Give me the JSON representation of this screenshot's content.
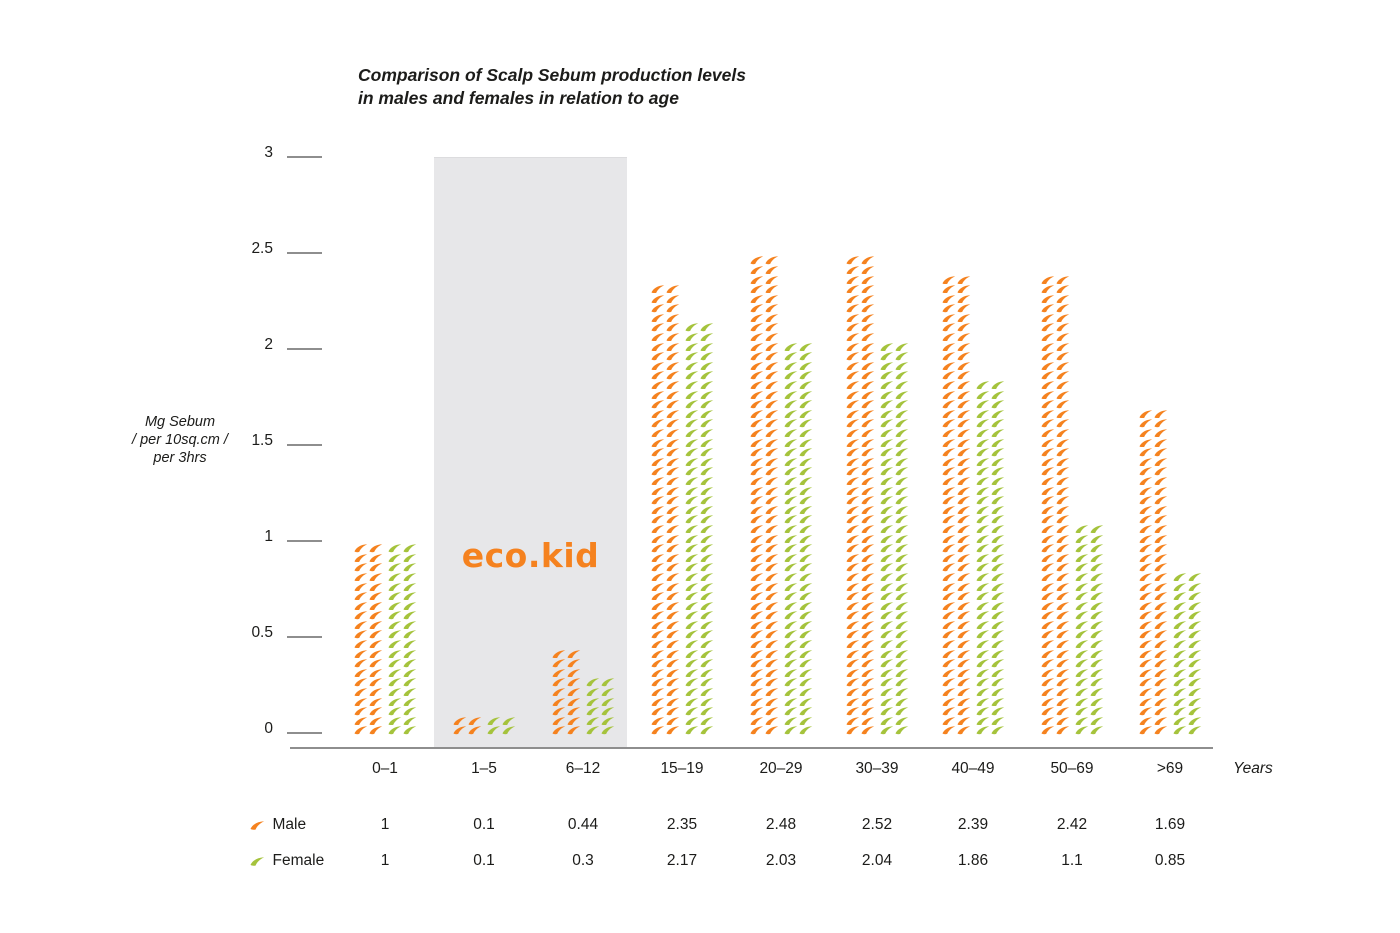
{
  "title": {
    "line1": "Comparison of Scalp Sebum production levels",
    "line2": "in males and females in relation to age"
  },
  "y_axis": {
    "label_lines": [
      "Mg Sebum",
      "/ per 10sq.cm /",
      "per 3hrs"
    ],
    "tick_labels": [
      "3",
      "2.5",
      "2",
      "1.5",
      "1",
      "0.5",
      "0"
    ]
  },
  "x_axis": {
    "categories": [
      "0–1",
      "1–5",
      "6–12",
      "15–19",
      "20–29",
      "30–39",
      "40–49",
      "50–69",
      ">69"
    ],
    "unit_label": "Years"
  },
  "watermark": {
    "text": "eco.kid"
  },
  "legend": {
    "male_label": "Male",
    "female_label": "Female"
  },
  "colors": {
    "male": "#f5821f",
    "female": "#a5c33c",
    "highlight_band": "#e7e7e9",
    "axis": "#8e8e8e",
    "text": "#1c1c1a",
    "logo": "#f5821f"
  },
  "chart_data": {
    "type": "bar",
    "subtype": "pictogram-leaf-stack",
    "title": "Comparison of Scalp Sebum production levels in males and females in relation to age",
    "ylabel": "Mg Sebum / per 10sq.cm / per 3hrs",
    "xlabel": "Years",
    "ylim": [
      0,
      3
    ],
    "yticks": [
      0,
      0.5,
      1,
      1.5,
      2,
      2.5,
      3
    ],
    "grid": false,
    "legend_position": "bottom-left-table",
    "unit_per_leaf_row": 0.05,
    "categories": [
      "0–1",
      "1–5",
      "6–12",
      "15–19",
      "20–29",
      "30–39",
      "40–49",
      "50–69",
      ">69"
    ],
    "highlighted_categories": [
      "1–5",
      "6–12"
    ],
    "series": [
      {
        "name": "Male",
        "color": "#f5821f",
        "values": [
          1,
          0.1,
          0.44,
          2.35,
          2.48,
          2.52,
          2.39,
          2.42,
          1.69
        ]
      },
      {
        "name": "Female",
        "color": "#a5c33c",
        "values": [
          1,
          0.1,
          0.3,
          2.17,
          2.03,
          2.04,
          1.86,
          1.1,
          0.85
        ]
      }
    ],
    "value_labels": [
      [
        "1",
        "0.1",
        "0.44",
        "2.35",
        "2.48",
        "2.52",
        "2.39",
        "2.42",
        "1.69"
      ],
      [
        "1",
        "0.1",
        "0.3",
        "2.17",
        "2.03",
        "2.04",
        "1.86",
        "1.1",
        "0.85"
      ]
    ]
  }
}
